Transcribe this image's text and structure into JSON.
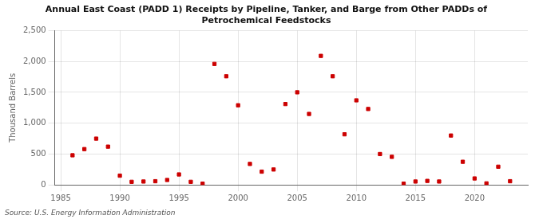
{
  "chart_data": {
    "type": "scatter",
    "title": "Annual East Coast (PADD 1) Receipts by Pipeline, Tanker, and Barge from Other PADDs of\nPetrochemical Feedstocks",
    "y_label": "Thousand Barrels",
    "annotation": "Source: U.S. Energy Information Administration",
    "x": [
      1986,
      1987,
      1988,
      1989,
      1990,
      1991,
      1992,
      1993,
      1994,
      1995,
      1996,
      1997,
      1998,
      1999,
      2000,
      2001,
      2002,
      2003,
      2004,
      2005,
      2006,
      2007,
      2008,
      2009,
      2010,
      2011,
      2012,
      2013,
      2014,
      2015,
      2016,
      2017,
      2018,
      2019,
      2020,
      2021,
      2022,
      2023
    ],
    "values": [
      480,
      580,
      750,
      620,
      150,
      50,
      55,
      60,
      80,
      170,
      50,
      20,
      1960,
      1760,
      1290,
      340,
      215,
      250,
      1310,
      1500,
      1150,
      2090,
      1760,
      820,
      1370,
      1230,
      500,
      455,
      20,
      55,
      65,
      55,
      800,
      375,
      105,
      25,
      295,
      60
    ],
    "color": "#cc0000",
    "marker": "square",
    "xlim": [
      1984.5,
      2024.5
    ],
    "xticks": [
      1985,
      1990,
      1995,
      2000,
      2005,
      2010,
      2015,
      2020
    ],
    "ylim": [
      0,
      2500
    ],
    "yticks": [
      0,
      500,
      {
        "value": 1000,
        "label": "1,000"
      },
      {
        "value": 1500,
        "label": "1,500"
      },
      {
        "value": 2000,
        "label": "2,000"
      },
      {
        "value": 2500,
        "label": "2,500"
      }
    ],
    "grid": true
  }
}
